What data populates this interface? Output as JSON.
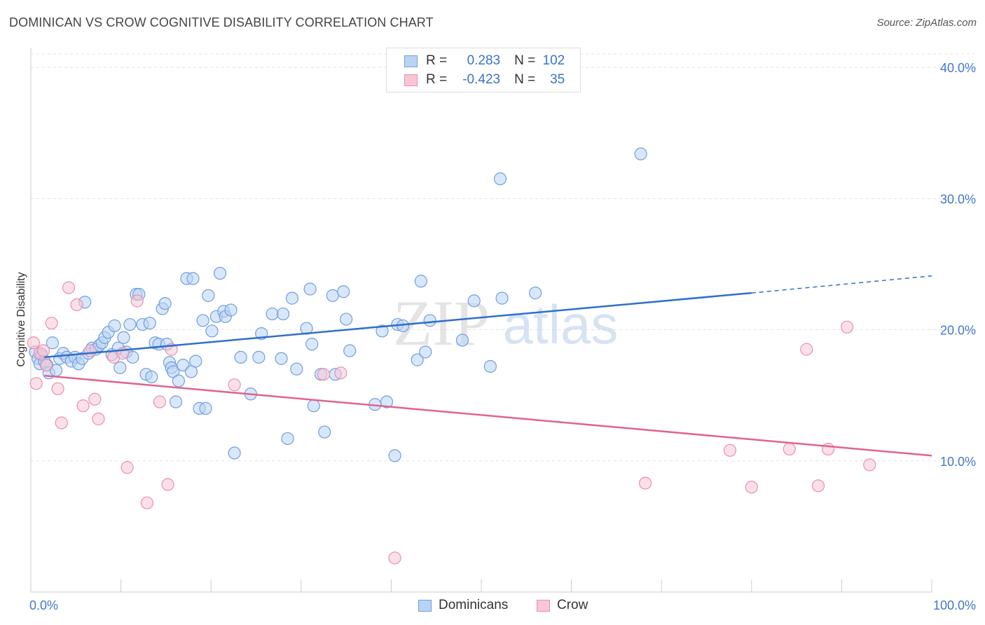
{
  "header": {
    "title": "DOMINICAN VS CROW COGNITIVE DISABILITY CORRELATION CHART",
    "source": "Source: ZipAtlas.com"
  },
  "legend": {
    "rows": [
      {
        "r_label": "R =",
        "r_value": "0.283",
        "n_label": "N =",
        "n_value": "102"
      },
      {
        "r_label": "R =",
        "r_value": "-0.423",
        "n_label": "N =",
        "n_value": "35"
      }
    ]
  },
  "watermark": {
    "zip": "ZIP",
    "atlas": "atlas"
  },
  "colors": {
    "dominicans_fill": "#b9d3f5",
    "dominicans_stroke": "#6f9fdc",
    "dominicans_line": "#2f6fcc",
    "crow_fill": "#f8c6d6",
    "crow_stroke": "#ea8fae",
    "crow_line": "#e0648f",
    "tick_text": "#4477cc",
    "grid": "#e3e3e3"
  },
  "chart_data": {
    "type": "scatter",
    "title": "DOMINICAN VS CROW COGNITIVE DISABILITY CORRELATION CHART",
    "xlabel": "",
    "ylabel": "Cognitive Disability",
    "xlim": [
      0,
      100
    ],
    "ylim": [
      0,
      41.5
    ],
    "x_ticks": [
      "0.0%",
      "100.0%"
    ],
    "y_ticks": [
      {
        "value": 10,
        "label": "10.0%"
      },
      {
        "value": 20,
        "label": "20.0%"
      },
      {
        "value": 30,
        "label": "30.0%"
      },
      {
        "value": 40,
        "label": "40.0%"
      }
    ],
    "grid": true,
    "legend_position": "top-center",
    "series": [
      {
        "name": "Dominicans",
        "R": 0.283,
        "N": 102,
        "trend": {
          "x0": 1.5,
          "y0": 17.9,
          "x1": 80,
          "y1": 22.8,
          "dash_to_x": 100,
          "dash_to_y": 24.1
        },
        "points": [
          [
            0.5,
            18.3
          ],
          [
            0.8,
            17.8
          ],
          [
            1.0,
            17.4
          ],
          [
            1.2,
            18.1
          ],
          [
            1.5,
            17.6
          ],
          [
            1.8,
            17.3
          ],
          [
            2.0,
            16.7
          ],
          [
            2.4,
            19.0
          ],
          [
            2.8,
            16.9
          ],
          [
            3.2,
            17.8
          ],
          [
            3.6,
            18.2
          ],
          [
            4.0,
            17.9
          ],
          [
            4.5,
            17.6
          ],
          [
            4.9,
            17.9
          ],
          [
            5.3,
            17.4
          ],
          [
            5.7,
            17.8
          ],
          [
            6.0,
            22.1
          ],
          [
            6.4,
            18.2
          ],
          [
            6.8,
            18.6
          ],
          [
            7.2,
            18.5
          ],
          [
            7.6,
            18.8
          ],
          [
            7.9,
            19.0
          ],
          [
            8.2,
            19.4
          ],
          [
            8.6,
            19.8
          ],
          [
            9.0,
            18.1
          ],
          [
            9.3,
            20.3
          ],
          [
            9.7,
            18.6
          ],
          [
            9.9,
            17.1
          ],
          [
            10.3,
            19.4
          ],
          [
            10.6,
            18.3
          ],
          [
            11.0,
            20.4
          ],
          [
            11.3,
            17.9
          ],
          [
            11.7,
            22.7
          ],
          [
            12.0,
            22.7
          ],
          [
            12.4,
            20.4
          ],
          [
            12.8,
            16.6
          ],
          [
            13.2,
            20.5
          ],
          [
            13.4,
            16.4
          ],
          [
            13.8,
            19.0
          ],
          [
            14.2,
            18.9
          ],
          [
            14.6,
            21.6
          ],
          [
            14.9,
            22.0
          ],
          [
            15.1,
            18.9
          ],
          [
            15.4,
            17.5
          ],
          [
            15.6,
            17.1
          ],
          [
            15.8,
            16.8
          ],
          [
            16.1,
            14.5
          ],
          [
            16.4,
            16.1
          ],
          [
            16.9,
            17.3
          ],
          [
            17.3,
            23.9
          ],
          [
            17.8,
            16.8
          ],
          [
            18.0,
            23.9
          ],
          [
            18.3,
            17.6
          ],
          [
            18.7,
            14.0
          ],
          [
            19.1,
            20.7
          ],
          [
            19.4,
            14.0
          ],
          [
            19.7,
            22.6
          ],
          [
            20.1,
            19.9
          ],
          [
            20.6,
            21.0
          ],
          [
            21.0,
            24.3
          ],
          [
            21.4,
            21.4
          ],
          [
            21.6,
            21.0
          ],
          [
            22.2,
            21.5
          ],
          [
            22.6,
            10.6
          ],
          [
            23.3,
            17.9
          ],
          [
            24.4,
            15.1
          ],
          [
            25.3,
            17.9
          ],
          [
            25.6,
            19.7
          ],
          [
            26.8,
            21.2
          ],
          [
            27.8,
            17.8
          ],
          [
            28.0,
            21.2
          ],
          [
            28.5,
            11.7
          ],
          [
            29.0,
            22.4
          ],
          [
            29.5,
            17.0
          ],
          [
            30.6,
            20.1
          ],
          [
            31.0,
            23.1
          ],
          [
            31.2,
            18.9
          ],
          [
            31.4,
            14.2
          ],
          [
            32.2,
            16.6
          ],
          [
            32.6,
            12.2
          ],
          [
            33.8,
            16.6
          ],
          [
            33.5,
            22.6
          ],
          [
            34.7,
            22.9
          ],
          [
            35.0,
            20.8
          ],
          [
            35.4,
            18.4
          ],
          [
            38.2,
            14.3
          ],
          [
            39.0,
            19.9
          ],
          [
            39.5,
            14.5
          ],
          [
            40.4,
            10.4
          ],
          [
            40.7,
            20.4
          ],
          [
            41.3,
            20.3
          ],
          [
            42.9,
            17.7
          ],
          [
            43.3,
            23.7
          ],
          [
            43.8,
            18.3
          ],
          [
            44.3,
            20.7
          ],
          [
            47.9,
            19.2
          ],
          [
            49.2,
            22.2
          ],
          [
            51.0,
            17.2
          ],
          [
            52.1,
            31.5
          ],
          [
            52.3,
            22.4
          ],
          [
            56.0,
            22.8
          ],
          [
            67.7,
            33.4
          ]
        ]
      },
      {
        "name": "Crow",
        "R": -0.423,
        "N": 35,
        "trend": {
          "x0": 1.5,
          "y0": 16.5,
          "x1": 100,
          "y1": 10.4
        },
        "points": [
          [
            0.3,
            19.0
          ],
          [
            0.6,
            15.9
          ],
          [
            1.0,
            18.2
          ],
          [
            1.4,
            18.4
          ],
          [
            1.7,
            17.3
          ],
          [
            2.3,
            20.5
          ],
          [
            3.0,
            15.5
          ],
          [
            3.4,
            12.9
          ],
          [
            4.2,
            23.2
          ],
          [
            5.1,
            21.9
          ],
          [
            5.8,
            14.2
          ],
          [
            6.6,
            18.4
          ],
          [
            7.1,
            14.7
          ],
          [
            7.5,
            13.2
          ],
          [
            9.2,
            17.9
          ],
          [
            10.2,
            18.2
          ],
          [
            10.7,
            9.5
          ],
          [
            11.8,
            22.2
          ],
          [
            12.9,
            6.8
          ],
          [
            14.3,
            14.5
          ],
          [
            15.2,
            8.2
          ],
          [
            15.6,
            18.5
          ],
          [
            22.6,
            15.8
          ],
          [
            32.5,
            16.6
          ],
          [
            34.4,
            16.7
          ],
          [
            40.4,
            2.6
          ],
          [
            68.2,
            8.3
          ],
          [
            77.6,
            10.8
          ],
          [
            80.0,
            8.0
          ],
          [
            84.2,
            10.9
          ],
          [
            86.1,
            18.5
          ],
          [
            87.4,
            8.1
          ],
          [
            88.5,
            10.9
          ],
          [
            90.6,
            20.2
          ],
          [
            93.1,
            9.7
          ]
        ]
      }
    ]
  }
}
